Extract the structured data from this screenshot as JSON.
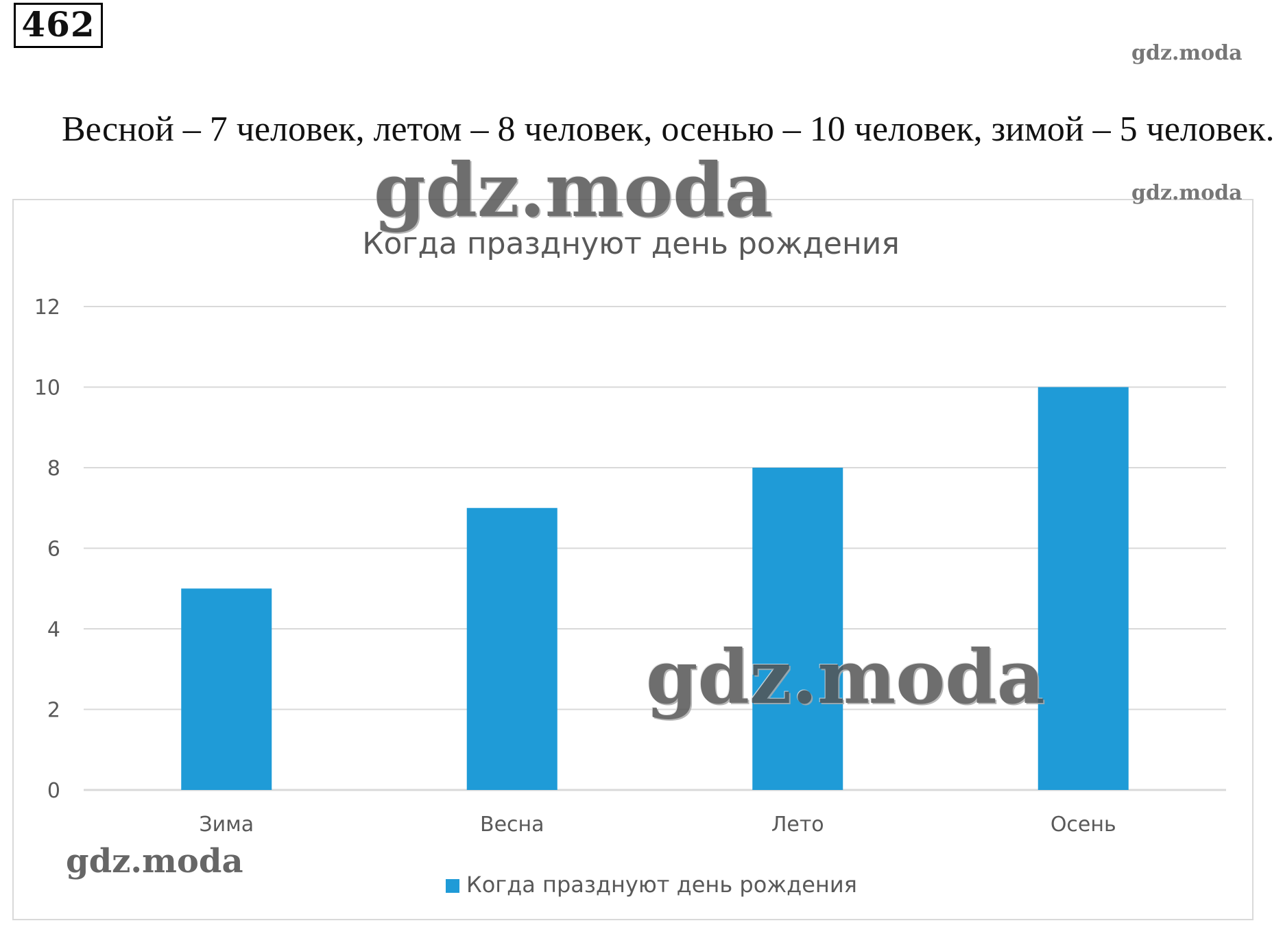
{
  "task_number": "462",
  "problem_text": "Весной – 7 человек, летом – 8 человек, осенью – 10 человек, зимой – 5 человек.",
  "watermarks": {
    "top_right": "gdz.moda",
    "chart_top_right": "gdz.moda",
    "big_top": "gdz.moda",
    "big_middle": "gdz.moda",
    "bottom_left": "gdz.moda"
  },
  "colors": {
    "bar": "#1f9bd7",
    "grid": "#d9d9d9",
    "axis_text": "#595959",
    "title": "#595959"
  },
  "chart_data": {
    "type": "bar",
    "title": "Когда празднуют день рождения",
    "categories": [
      "Зима",
      "Весна",
      "Лето",
      "Осень"
    ],
    "series": [
      {
        "name": "Когда празднуют день рождения",
        "values": [
          5,
          7,
          8,
          10
        ]
      }
    ],
    "ylim": [
      0,
      12
    ],
    "yticks": [
      0,
      2,
      4,
      6,
      8,
      10,
      12
    ],
    "grid": true,
    "legend": "bottom"
  }
}
